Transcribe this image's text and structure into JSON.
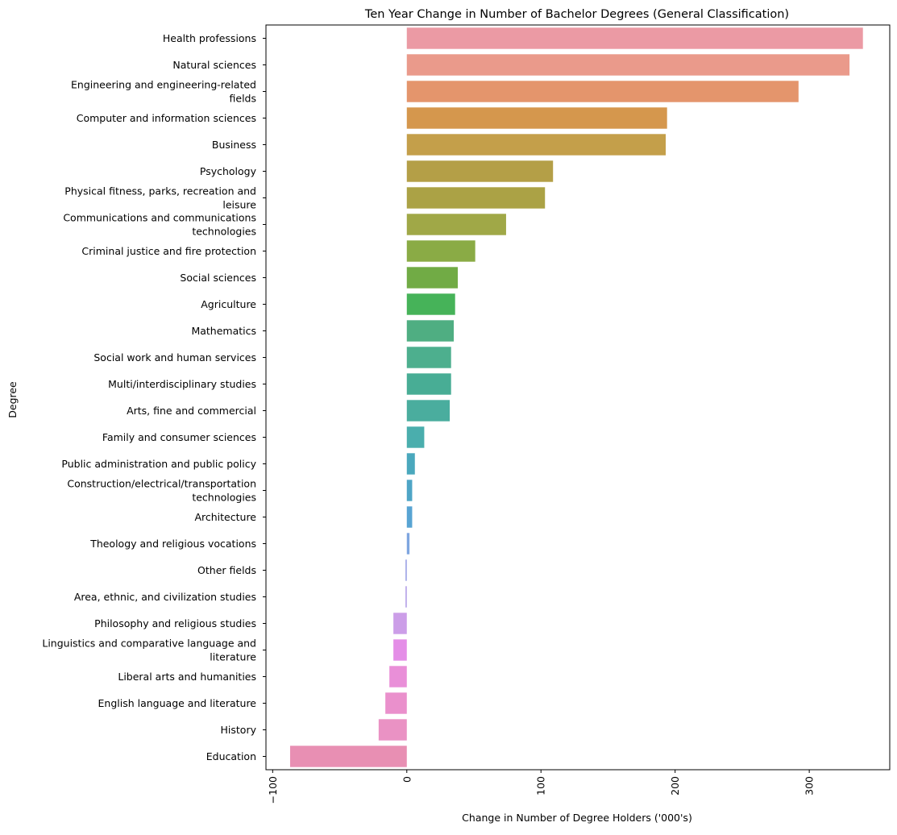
{
  "chart_data": {
    "type": "bar",
    "orientation": "horizontal",
    "title": "Ten Year Change in Number of Bachelor Degrees (General Classification)",
    "xlabel": "Change in Number of Degree Holders ('000's)",
    "ylabel": "Degree",
    "xlim": [
      -105,
      360
    ],
    "xticks": [
      -100,
      0,
      100,
      200,
      300
    ],
    "xtick_labels": [
      "−100",
      "0",
      "100",
      "200",
      "300"
    ],
    "grid": false,
    "legend": "none",
    "categories": [
      [
        "Health professions"
      ],
      [
        "Natural sciences"
      ],
      [
        "Engineering and engineering-related",
        "fields"
      ],
      [
        "Computer and information sciences"
      ],
      [
        "Business"
      ],
      [
        "Psychology"
      ],
      [
        "Physical fitness, parks, recreation and",
        "leisure"
      ],
      [
        "Communications and communications",
        "technologies"
      ],
      [
        "Criminal justice and fire protection"
      ],
      [
        "Social sciences"
      ],
      [
        "Agriculture"
      ],
      [
        "Mathematics"
      ],
      [
        "Social work and human services"
      ],
      [
        "Multi/interdisciplinary studies"
      ],
      [
        "Arts, fine and commercial"
      ],
      [
        "Family and consumer sciences"
      ],
      [
        "Public administration and public policy"
      ],
      [
        "Construction/electrical/transportation",
        "technologies"
      ],
      [
        "Architecture"
      ],
      [
        "Theology and religious vocations"
      ],
      [
        "Other fields"
      ],
      [
        "Area, ethnic, and civilization studies"
      ],
      [
        "Philosophy and religious studies"
      ],
      [
        "Linguistics and comparative language and",
        "literature"
      ],
      [
        "Liberal arts and humanities"
      ],
      [
        "English language and literature"
      ],
      [
        "History"
      ],
      [
        "Education"
      ]
    ],
    "values": [
      340,
      330,
      292,
      194,
      193,
      109,
      103,
      74,
      51,
      38,
      36,
      35,
      33,
      33,
      32,
      13,
      6,
      4,
      4,
      2,
      -1,
      -1,
      -10,
      -10,
      -13,
      -16,
      -21,
      -87
    ],
    "colors": [
      "#eb9aa4",
      "#ea9a8b",
      "#e4956c",
      "#d5974d",
      "#c49f4a",
      "#b49f47",
      "#aba245",
      "#a0a847",
      "#8aab45",
      "#71ab45",
      "#46b359",
      "#4fae82",
      "#4daf8e",
      "#48ad95",
      "#4aad9e",
      "#4aaead",
      "#4aa8bd",
      "#4ea5c6",
      "#58a4d3",
      "#7ea6e0",
      "#9fa5e6",
      "#b6a3e8",
      "#cc9ee8",
      "#e48ee7",
      "#e98fd8",
      "#ea90cc",
      "#ea92c4",
      "#e88fb3"
    ]
  }
}
